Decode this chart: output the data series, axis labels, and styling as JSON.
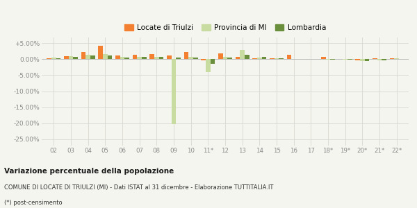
{
  "years": [
    "02",
    "03",
    "04",
    "05",
    "06",
    "07",
    "08",
    "09",
    "10",
    "11*",
    "12",
    "13",
    "14",
    "15",
    "16",
    "17",
    "18*",
    "19*",
    "20*",
    "21*",
    "22*"
  ],
  "locate": [
    0.35,
    0.85,
    2.3,
    4.3,
    1.1,
    1.3,
    1.5,
    1.1,
    2.3,
    -0.3,
    1.9,
    0.7,
    0.35,
    0.25,
    1.3,
    0.0,
    0.8,
    0.0,
    -0.25,
    0.2,
    0.3
  ],
  "provincia": [
    0.45,
    0.95,
    1.3,
    1.5,
    0.7,
    0.8,
    0.8,
    -20.2,
    0.8,
    -4.0,
    0.65,
    2.9,
    0.6,
    0.35,
    0.0,
    0.0,
    -0.05,
    -0.2,
    -0.5,
    -0.4,
    0.2
  ],
  "lombardia": [
    0.35,
    0.75,
    1.1,
    1.1,
    0.6,
    0.65,
    0.75,
    0.6,
    0.5,
    -1.5,
    0.6,
    1.4,
    0.7,
    0.3,
    0.1,
    0.0,
    -0.1,
    -0.2,
    -0.5,
    -0.45,
    0.1
  ],
  "color_locate": "#f28030",
  "color_provincia": "#c8dba0",
  "color_lombardia": "#6a8f3c",
  "ytick_vals": [
    5.0,
    0.0,
    -5.0,
    -10.0,
    -15.0,
    -20.0,
    -25.0
  ],
  "ytick_labels": [
    "+5.00%",
    "0.00%",
    "-5.00%",
    "-10.00%",
    "-15.00%",
    "-20.00%",
    "-25.00%"
  ],
  "ylim": [
    -27,
    6.8
  ],
  "title": "Variazione percentuale della popolazione",
  "subtitle": "COMUNE DI LOCATE DI TRIULZI (MI) - Dati ISTAT al 31 dicembre - Elaborazione TUTTITALIA.IT",
  "footnote": "(*) post-censimento",
  "bg_color": "#f5f5f0",
  "grid_color": "#d8d8d0",
  "tick_color": "#888888"
}
